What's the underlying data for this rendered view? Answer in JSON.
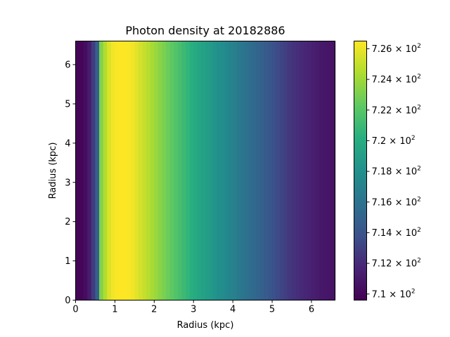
{
  "chart_data": {
    "type": "heatmap",
    "title": "Photon density at 20182886",
    "xlabel": "Radius (kpc)",
    "ylabel": "Radius (kpc)",
    "xlim": [
      0,
      6.6
    ],
    "ylim": [
      0,
      6.6
    ],
    "x_ticks": [
      0,
      1,
      2,
      3,
      4,
      5,
      6
    ],
    "y_ticks": [
      0,
      1,
      2,
      3,
      4,
      5,
      6
    ],
    "colormap": "viridis",
    "colorbar": {
      "vmin": 709.6,
      "vmax": 726.5,
      "ticks": [
        {
          "base": "7.1",
          "mant": 710,
          "exp": "2"
        },
        {
          "base": "7.12",
          "mant": 712,
          "exp": "2"
        },
        {
          "base": "7.14",
          "mant": 714,
          "exp": "2"
        },
        {
          "base": "7.16",
          "mant": 716,
          "exp": "2"
        },
        {
          "base": "7.18",
          "mant": 718,
          "exp": "2"
        },
        {
          "base": "7.2",
          "mant": 720,
          "exp": "2"
        },
        {
          "base": "7.22",
          "mant": 722,
          "exp": "2"
        },
        {
          "base": "7.24",
          "mant": 724,
          "exp": "2"
        },
        {
          "base": "7.26",
          "mant": 726,
          "exp": "2"
        }
      ]
    },
    "column_profile": {
      "x": [
        0.0,
        0.1,
        0.2,
        0.3,
        0.4,
        0.5,
        0.6,
        0.7,
        0.8,
        0.9,
        1.0,
        1.1,
        1.2,
        1.3,
        1.4,
        1.5,
        1.6,
        1.7,
        1.8,
        1.9,
        2.0,
        2.1,
        2.2,
        2.3,
        2.4,
        2.5,
        2.6,
        2.7,
        2.8,
        2.9,
        3.0,
        3.1,
        3.2,
        3.3,
        3.4,
        3.5,
        3.6,
        3.7,
        3.8,
        3.9,
        4.0,
        4.1,
        4.2,
        4.3,
        4.4,
        4.5,
        4.6,
        4.7,
        4.8,
        4.9,
        5.0,
        5.1,
        5.2,
        5.3,
        5.4,
        5.5,
        5.6,
        5.7,
        5.8,
        5.9,
        6.0,
        6.1,
        6.2,
        6.3,
        6.4,
        6.5
      ],
      "values": [
        709.8,
        709.9,
        710.3,
        711.2,
        712.8,
        714.8,
        723.2,
        724.5,
        725.6,
        726.2,
        726.4,
        726.5,
        726.5,
        726.4,
        726.2,
        725.8,
        725.4,
        725.0,
        724.6,
        724.2,
        723.8,
        723.4,
        723.0,
        722.6,
        722.2,
        721.8,
        721.4,
        721.0,
        720.6,
        720.2,
        719.8,
        719.5,
        719.2,
        718.9,
        718.6,
        718.3,
        718.0,
        717.7,
        717.4,
        717.1,
        716.8,
        716.5,
        716.2,
        715.9,
        715.6,
        715.3,
        715.0,
        714.7,
        714.4,
        714.1,
        713.8,
        713.5,
        713.2,
        712.9,
        712.6,
        712.4,
        712.2,
        712.0,
        711.8,
        711.6,
        711.4,
        711.2,
        711.0,
        710.9,
        710.8,
        710.7
      ]
    }
  }
}
